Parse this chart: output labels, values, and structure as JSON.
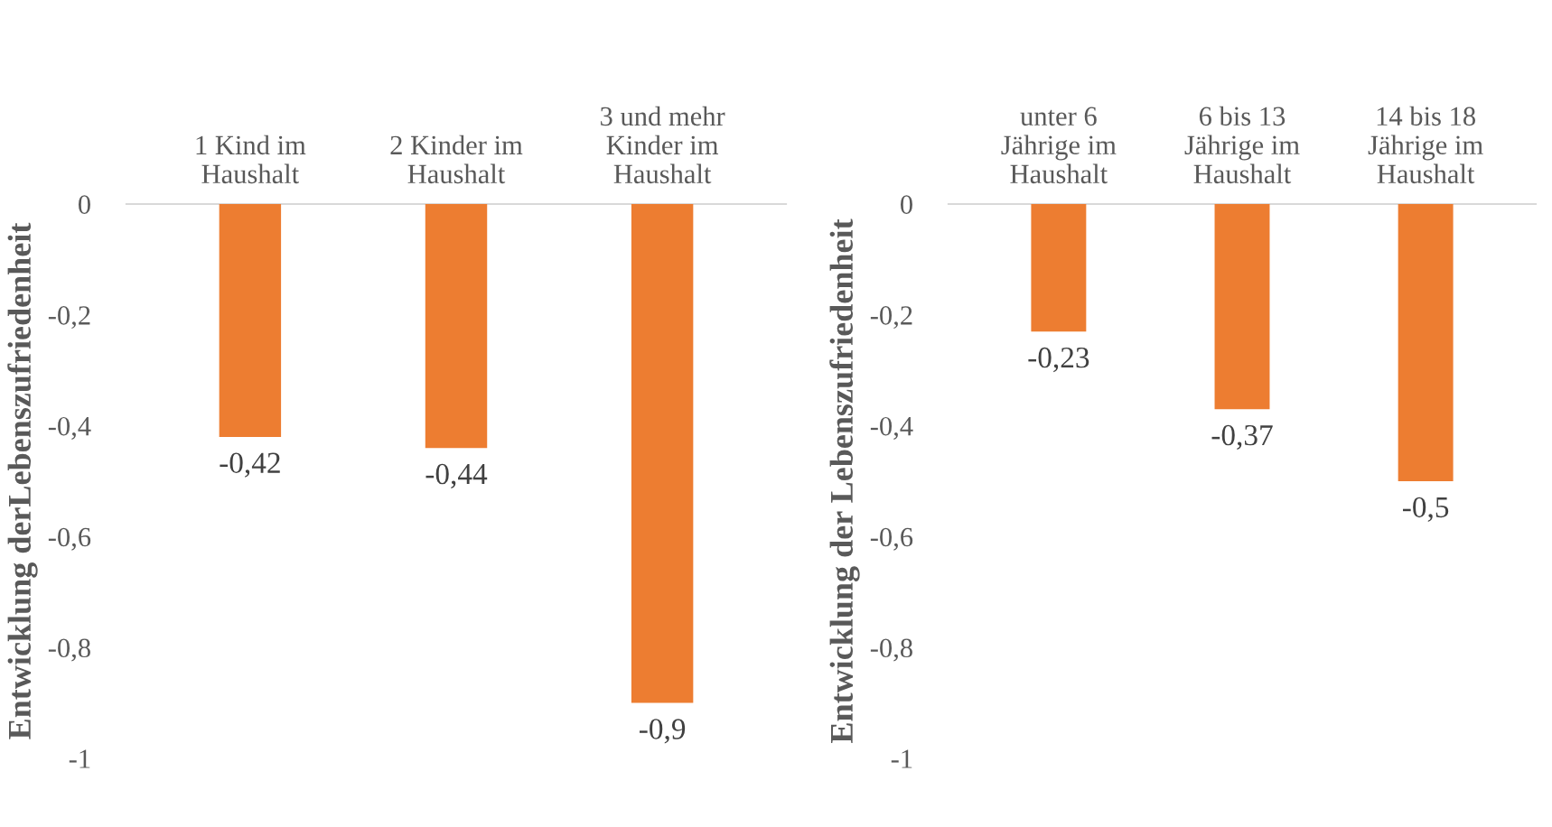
{
  "chart_data": [
    {
      "type": "bar",
      "ylabel": "Entwicklung derLebenszufriedenheit",
      "categories": [
        "1 Kind im\nHaushalt",
        "2 Kinder im\nHaushalt",
        "3 und mehr\nKinder im\nHaushalt"
      ],
      "values": [
        -0.42,
        -0.44,
        -0.9
      ],
      "value_labels": [
        "-0,42",
        "-0,44",
        "-0,9"
      ],
      "color": "#ed7d31",
      "ylim": [
        -1,
        0
      ],
      "yticks": [
        {
          "value": 0,
          "label": "0"
        },
        {
          "value": -0.2,
          "label": "-0,2"
        },
        {
          "value": -0.4,
          "label": "-0,4"
        },
        {
          "value": -0.6,
          "label": "-0,6"
        },
        {
          "value": -0.8,
          "label": "-0,8"
        },
        {
          "value": -1,
          "label": "-1"
        }
      ],
      "grid": false
    },
    {
      "type": "bar",
      "ylabel": "Entwicklung der Lebenszufriedenheit",
      "categories": [
        "unter 6\nJährige im\nHaushalt",
        "6 bis 13\nJährige im\nHaushalt",
        "14 bis 18\nJährige im\nHaushalt"
      ],
      "values": [
        -0.23,
        -0.37,
        -0.5
      ],
      "value_labels": [
        "-0,23",
        "-0,37",
        "-0,5"
      ],
      "color": "#ed7d31",
      "ylim": [
        -1,
        0
      ],
      "yticks": [
        {
          "value": 0,
          "label": "0"
        },
        {
          "value": -0.2,
          "label": "-0,2"
        },
        {
          "value": -0.4,
          "label": "-0,4"
        },
        {
          "value": -0.6,
          "label": "-0,6"
        },
        {
          "value": -0.8,
          "label": "-0,8"
        },
        {
          "value": -1,
          "label": "-1"
        }
      ],
      "grid": false
    }
  ]
}
